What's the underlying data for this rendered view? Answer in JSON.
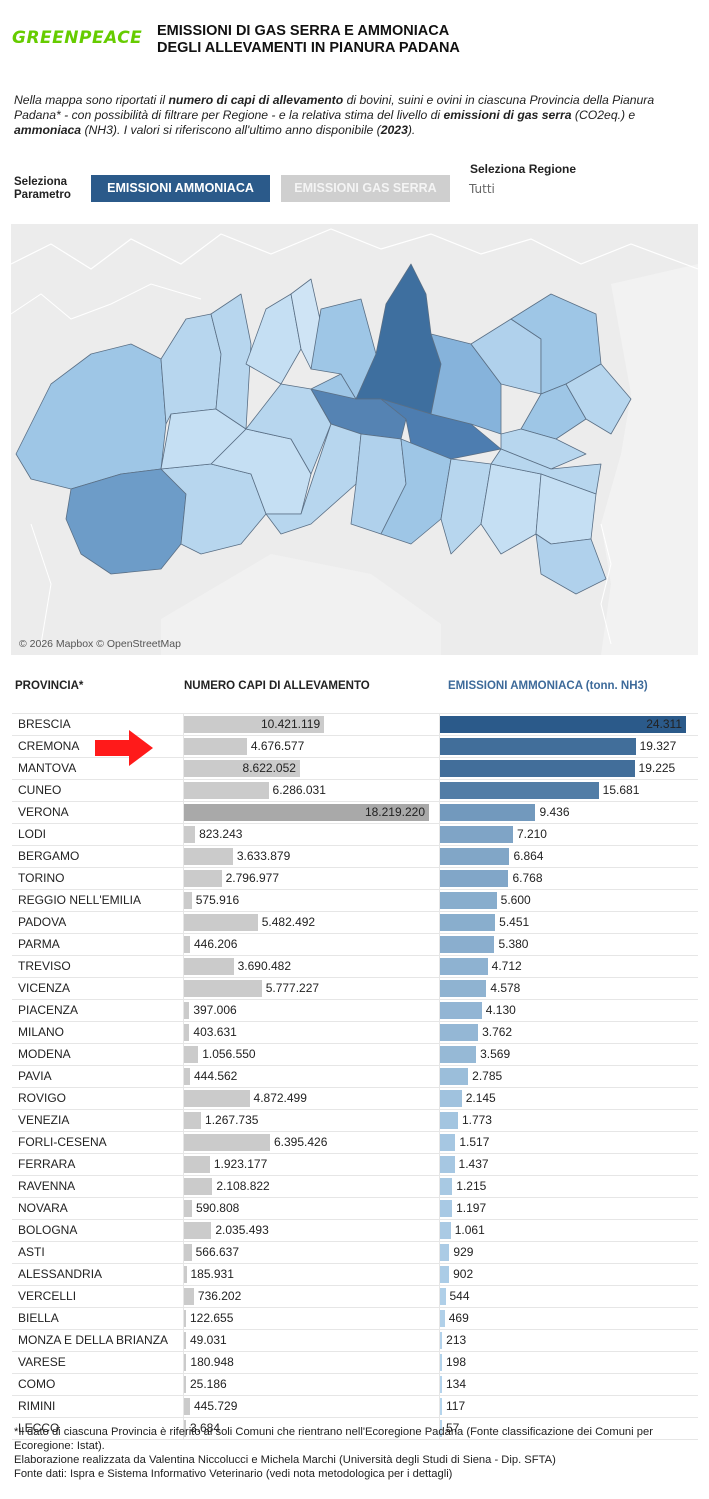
{
  "header": {
    "logo_text": "GREENPEACE",
    "title_line1": "EMISSIONI DI GAS SERRA E AMMONIACA",
    "title_line2": "DEGLI ALLEVAMENTI IN PIANURA PADANA"
  },
  "intro": {
    "p1": "Nella mappa sono riportati il ",
    "b1": "numero di capi di allevamento",
    "p2": " di bovini, suini e ovini in ciascuna Provincia della Pianura Padana* - con possibilità di filtrare per Regione - e la relativa stima del livello di ",
    "b2": "emissioni di gas serra",
    "p3": " (CO2eq.) e ",
    "b3": "ammoniaca",
    "p4": " (NH3). I valori si riferiscono all'ultimo anno disponibile (",
    "b4": "2023",
    "p5": ")."
  },
  "controls": {
    "param_label_1": "Seleziona",
    "param_label_2": "Parametro",
    "btn_ammonia": "EMISSIONI AMMONIACA",
    "btn_gas": "EMISSIONI GAS SERRA",
    "region_label": "Seleziona Regione",
    "region_value": "Tutti"
  },
  "map": {
    "attribution": "© 2026 Mapbox © OpenStreetMap"
  },
  "table_headers": {
    "provincia": "PROVINCIA*",
    "capi": "NUMERO CAPI DI ALLEVAMENTO",
    "ammonia": "EMISSIONI AMMONIACA (tonn. NH3)"
  },
  "colors": {
    "dark_blue": "#2b5a8a",
    "light_blue": "#b7d6ee",
    "grey_bar": "#cbcbcb",
    "highlight_grey": "#a9a9a9",
    "arrow": "#ff1a1a"
  },
  "chart_data": {
    "type": "bar",
    "categories": [
      "BRESCIA",
      "CREMONA",
      "MANTOVA",
      "CUNEO",
      "VERONA",
      "LODI",
      "BERGAMO",
      "TORINO",
      "REGGIO NELL'EMILIA",
      "PADOVA",
      "PARMA",
      "TREVISO",
      "VICENZA",
      "PIACENZA",
      "MILANO",
      "MODENA",
      "PAVIA",
      "ROVIGO",
      "VENEZIA",
      "FORLI-CESENA",
      "FERRARA",
      "RAVENNA",
      "NOVARA",
      "BOLOGNA",
      "ASTI",
      "ALESSANDRIA",
      "VERCELLI",
      "BIELLA",
      "MONZA E DELLA BRIANZA",
      "VARESE",
      "COMO",
      "RIMINI",
      "LECCO"
    ],
    "series": [
      {
        "name": "NUMERO CAPI DI ALLEVAMENTO",
        "values": [
          10421119,
          4676577,
          8622052,
          6286031,
          18219220,
          823243,
          3633879,
          2796977,
          575916,
          5482492,
          446206,
          3690482,
          5777227,
          397006,
          403631,
          1056550,
          444562,
          4872499,
          1267735,
          6395426,
          1923177,
          2108822,
          590808,
          2035493,
          566637,
          185931,
          736202,
          122655,
          49031,
          180948,
          25186,
          445729,
          3684
        ],
        "labels": [
          "10.421.119",
          "4.676.577",
          "8.622.052",
          "6.286.031",
          "18.219.220",
          "823.243",
          "3.633.879",
          "2.796.977",
          "575.916",
          "5.482.492",
          "446.206",
          "3.690.482",
          "5.777.227",
          "397.006",
          "403.631",
          "1.056.550",
          "444.562",
          "4.872.499",
          "1.267.735",
          "6.395.426",
          "1.923.177",
          "2.108.822",
          "590.808",
          "2.035.493",
          "566.637",
          "185.931",
          "736.202",
          "122.655",
          "49.031",
          "180.948",
          "25.186",
          "445.729",
          "3.684"
        ]
      },
      {
        "name": "EMISSIONI AMMONIACA (tonn. NH3)",
        "values": [
          24311,
          19327,
          19225,
          15681,
          9436,
          7210,
          6864,
          6768,
          5600,
          5451,
          5380,
          4712,
          4578,
          4130,
          3762,
          3569,
          2785,
          2145,
          1773,
          1517,
          1437,
          1215,
          1197,
          1061,
          929,
          902,
          544,
          469,
          213,
          198,
          134,
          117,
          57
        ],
        "labels": [
          "24.311",
          "19.327",
          "19.225",
          "15.681",
          "9.436",
          "7.210",
          "6.864",
          "6.768",
          "5.600",
          "5.451",
          "5.380",
          "4.712",
          "4.578",
          "4.130",
          "3.762",
          "3.569",
          "2.785",
          "2.145",
          "1.773",
          "1.517",
          "1.437",
          "1.215",
          "1.197",
          "1.061",
          "929",
          "902",
          "544",
          "469",
          "213",
          "198",
          "134",
          "117",
          "57"
        ]
      }
    ]
  },
  "footnote": {
    "line1": "*Il dato di ciascuna Provincia è riferito ai soli Comuni che rientrano nell'Ecoregione Padana (Fonte classificazione dei Comuni per Ecoregione: Istat).",
    "line2": "Elaborazione realizzata da Valentina Niccolucci e Michela Marchi (Università degli Studi di Siena - Dip. SFTA)",
    "line3": "Fonte dati: Ispra e Sistema Informativo Veterinario (vedi nota metodologica per i dettagli)"
  }
}
